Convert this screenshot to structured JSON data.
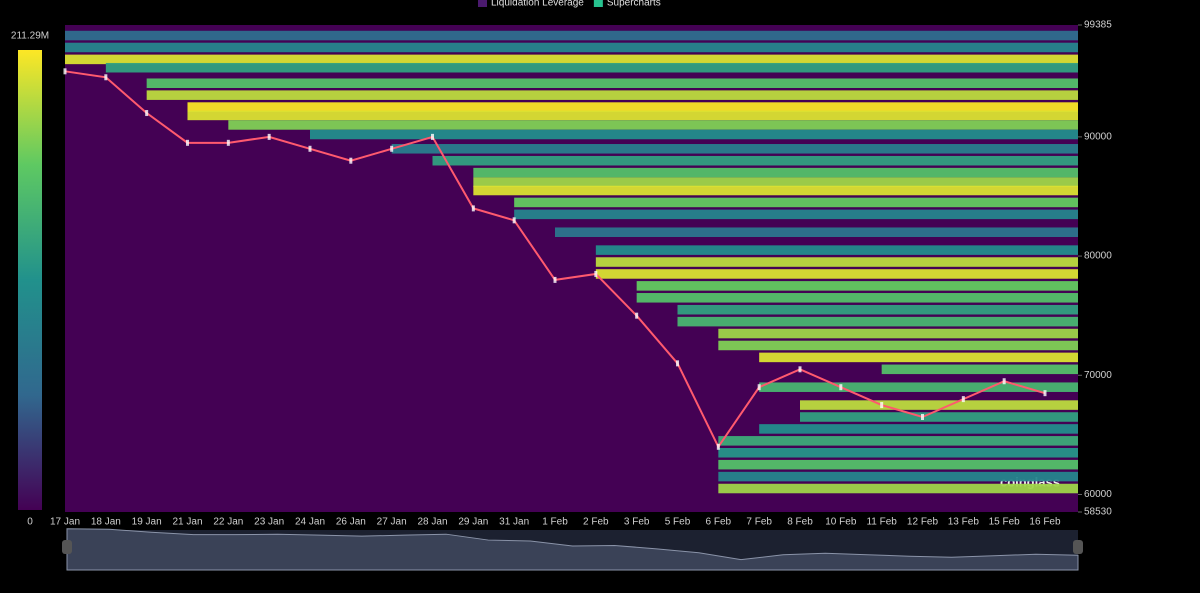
{
  "chart_data": {
    "type": "heatmap",
    "legend": [
      {
        "name": "Liquidation Leverage",
        "color": "#4b1a6e"
      },
      {
        "name": "Supercharts",
        "color": "#27c28f"
      }
    ],
    "colorbar": {
      "max": 211.29,
      "max_label": "211.29M",
      "min": 0,
      "colors": [
        "#440154",
        "#31688e",
        "#21918c",
        "#5ec962",
        "#fde725"
      ]
    },
    "watermark": "coinglass",
    "categories": [
      "17 Jan",
      "18 Jan",
      "19 Jan",
      "21 Jan",
      "22 Jan",
      "23 Jan",
      "24 Jan",
      "26 Jan",
      "27 Jan",
      "28 Jan",
      "29 Jan",
      "31 Jan",
      "1 Feb",
      "2 Feb",
      "3 Feb",
      "5 Feb",
      "6 Feb",
      "7 Feb",
      "8 Feb",
      "10 Feb",
      "11 Feb",
      "12 Feb",
      "13 Feb",
      "15 Feb",
      "16 Feb"
    ],
    "ylim": [
      58530,
      99385
    ],
    "yticks": [
      58530,
      60000,
      70000,
      80000,
      90000,
      99385
    ],
    "price": {
      "color": "#ff5a6e",
      "values": [
        95500,
        95000,
        92000,
        89500,
        89500,
        90000,
        89000,
        88000,
        89000,
        90000,
        84000,
        83000,
        78000,
        78500,
        75000,
        71000,
        64000,
        69000,
        70500,
        69000,
        67500,
        66500,
        68000,
        69500,
        68500
      ]
    },
    "bands": {
      "price": [
        98500,
        97500,
        96500,
        95800,
        94500,
        93500,
        92500,
        91800,
        91000,
        90200,
        89000,
        88000,
        87000,
        86200,
        85500,
        84500,
        83500,
        82000,
        80500,
        79500,
        78500,
        77500,
        76500,
        75500,
        74500,
        73500,
        72500,
        71500,
        70500,
        69000,
        67500,
        66500,
        65500,
        64500,
        63500,
        62500,
        61500,
        60500
      ],
      "start": [
        0,
        0,
        0,
        1,
        2,
        2,
        3,
        3,
        4,
        6,
        8,
        9,
        10,
        10,
        10,
        11,
        11,
        12,
        13,
        13,
        13,
        14,
        14,
        15,
        15,
        16,
        16,
        17,
        20,
        17,
        18,
        18,
        17,
        16,
        16,
        16,
        16,
        16
      ],
      "values": [
        60,
        90,
        200,
        120,
        150,
        190,
        210,
        200,
        170,
        100,
        80,
        120,
        150,
        180,
        200,
        160,
        90,
        70,
        100,
        190,
        200,
        160,
        150,
        120,
        140,
        180,
        170,
        200,
        150,
        140,
        190,
        120,
        100,
        130,
        110,
        150,
        90,
        180
      ]
    }
  }
}
